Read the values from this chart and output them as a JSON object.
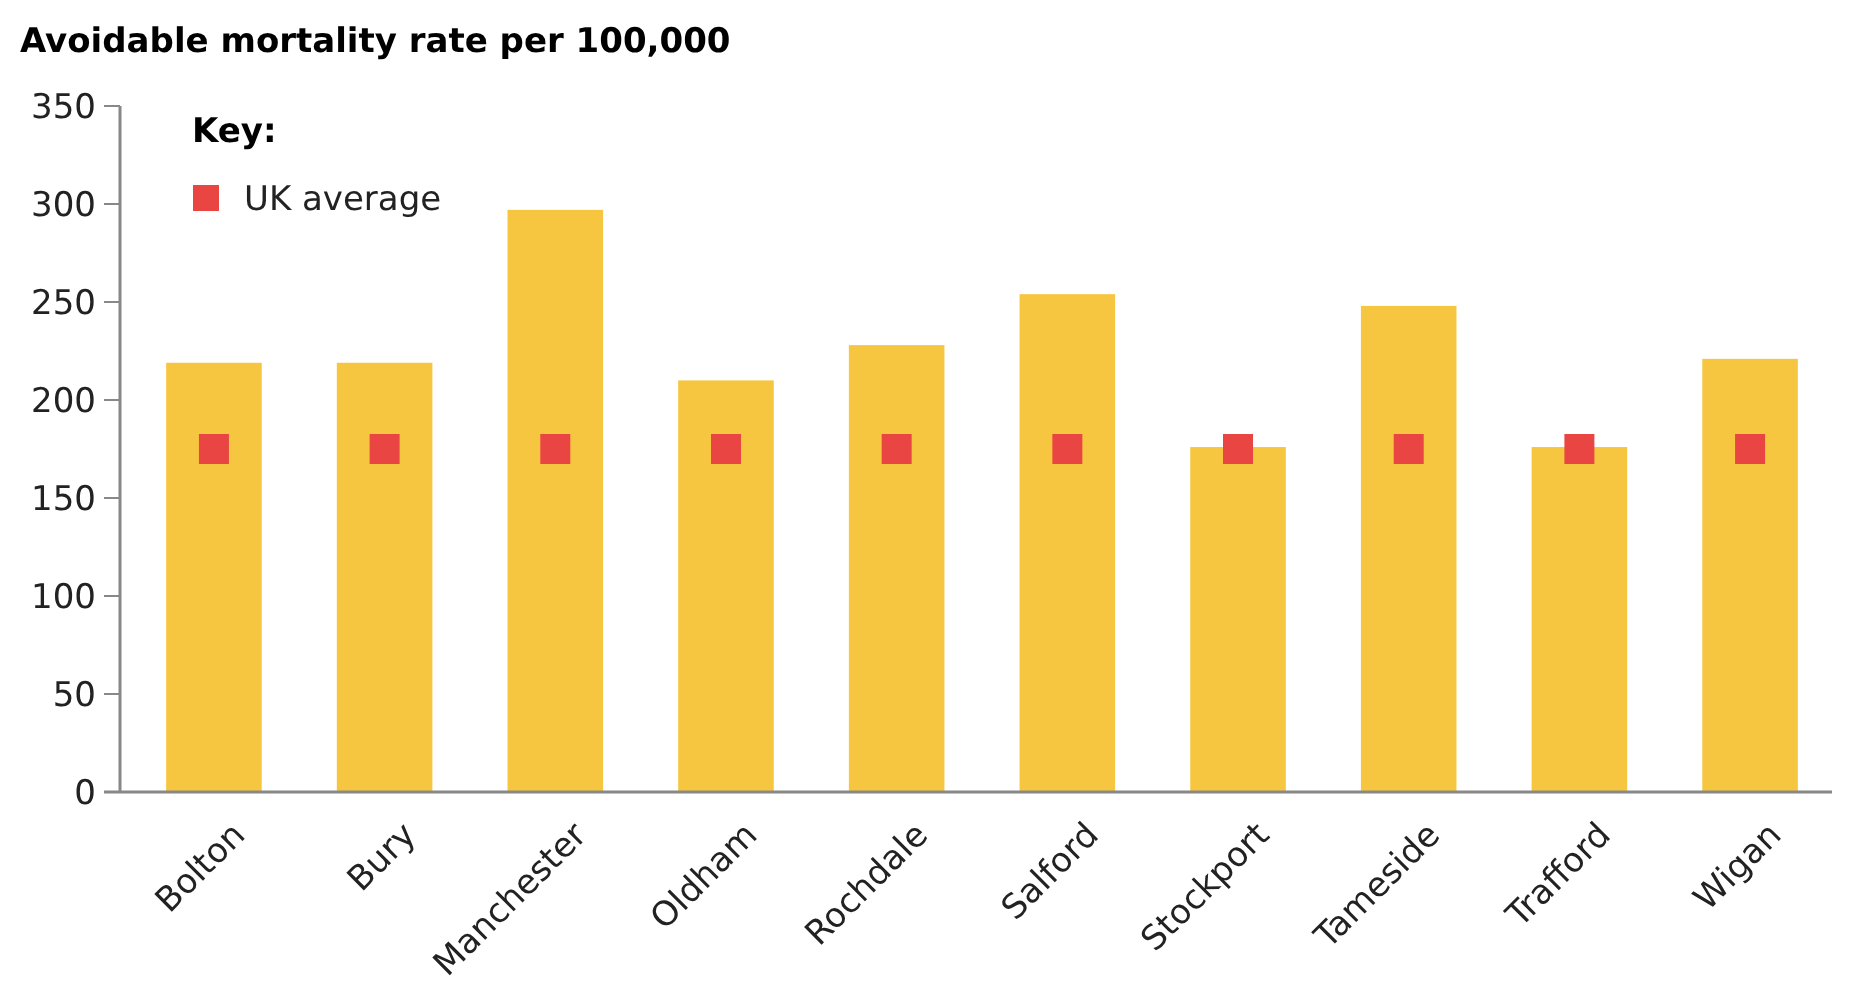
{
  "chart_data": {
    "type": "bar",
    "title": "Avoidable mortality rate per 100,000",
    "legend_title": "Key:",
    "categories": [
      "Bolton",
      "Bury",
      "Manchester",
      "Oldham",
      "Rochdale",
      "Salford",
      "Stockport",
      "Tameside",
      "Trafford",
      "Wigan"
    ],
    "series": [
      {
        "color": "#f7c640",
        "values": [
          219,
          219,
          297,
          210,
          228,
          254,
          176,
          248,
          176,
          221
        ]
      },
      {
        "type": "scatter",
        "name": "UK average",
        "color": "#e84543",
        "marker": "square",
        "x": [
          "Bolton",
          "Bury",
          "Manchester",
          "Oldham",
          "Rochdale",
          "Salford",
          "Stockport",
          "Tameside",
          "Trafford",
          "Wigan"
        ],
        "values": [
          175,
          175,
          175,
          175,
          175,
          175,
          175,
          175,
          175,
          175
        ]
      }
    ],
    "ylim": [
      0,
      350
    ],
    "yticks": [
      0,
      50,
      100,
      150,
      200,
      250,
      300,
      350
    ],
    "grid": false,
    "legend": "top left"
  }
}
